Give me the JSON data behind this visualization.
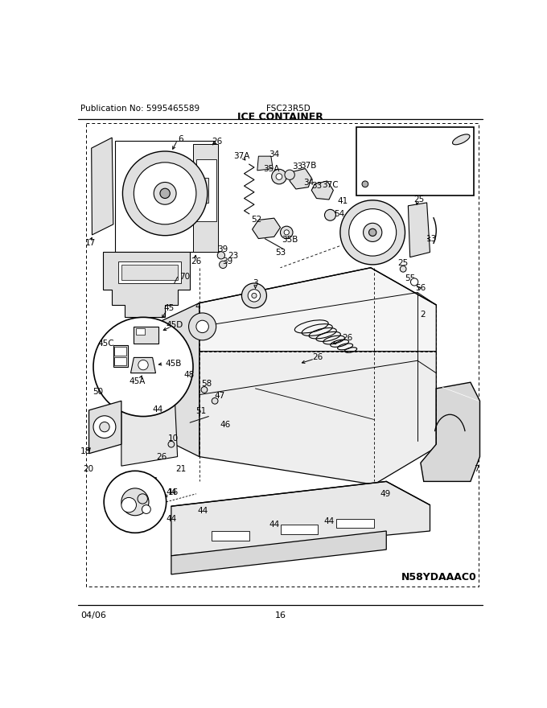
{
  "publication": "Publication No: 5995465589",
  "model": "FSC23R5D",
  "title": "ICE CONTAINER",
  "date": "04/06",
  "page": "16",
  "part_code": "N58YDAAAC0",
  "bg_color": "#ffffff",
  "line_color": "#000000",
  "gray1": "#c8c8c8",
  "gray2": "#e0e0e0",
  "gray3": "#b0b0b0",
  "fig_width": 6.8,
  "fig_height": 8.8,
  "dpi": 100
}
